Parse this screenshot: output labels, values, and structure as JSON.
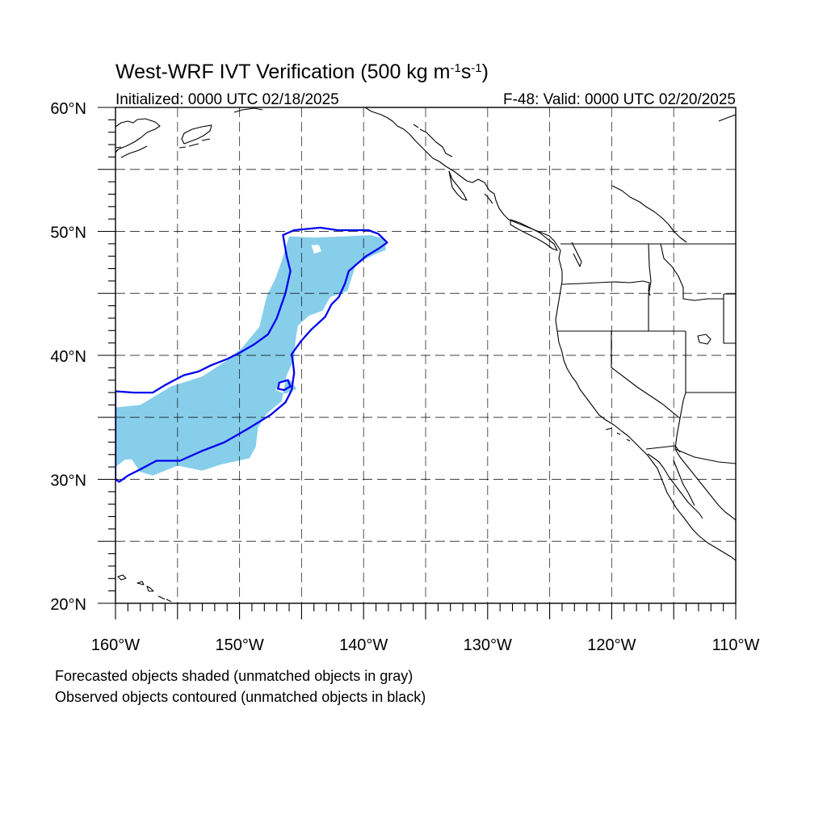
{
  "title": {
    "main": "West-WRF IVT Verification (500 kg m",
    "sup1": "-1",
    "mid": "s",
    "sup2": "-1",
    "end": ")"
  },
  "subtitle_left": "Initialized: 0000 UTC 02/18/2025",
  "subtitle_right": "F-48: Valid: 0000 UTC 02/20/2025",
  "notes": [
    "Forecasted objects shaded (unmatched objects in gray)",
    "Observed objects contoured (unmatched objects in black)"
  ],
  "map": {
    "lon_range": [
      -160,
      -110
    ],
    "lat_range": [
      20,
      60
    ],
    "lon_ticks": [
      {
        "value": -160,
        "label": "160°W"
      },
      {
        "value": -150,
        "label": "150°W"
      },
      {
        "value": -140,
        "label": "140°W"
      },
      {
        "value": -130,
        "label": "130°W"
      },
      {
        "value": -120,
        "label": "120°W"
      },
      {
        "value": -110,
        "label": "110°W"
      }
    ],
    "lat_ticks": [
      {
        "value": 60,
        "label": "60°N"
      },
      {
        "value": 50,
        "label": "50°N"
      },
      {
        "value": 40,
        "label": "40°N"
      },
      {
        "value": 30,
        "label": "30°N"
      },
      {
        "value": 20,
        "label": "20°N"
      }
    ],
    "gridline_interval_deg": 5,
    "grid": true,
    "colors": {
      "forecast_fill": "#87ceeb",
      "observed_contour": "#0000ee",
      "coastline": "#000000",
      "gridline": "#000000"
    },
    "forecast_object": {
      "label": "Forecasted object (matched)",
      "outline": [
        [
          -160,
          35.8
        ],
        [
          -158,
          36
        ],
        [
          -155.5,
          37.5
        ],
        [
          -153,
          38.3
        ],
        [
          -151,
          39.6
        ],
        [
          -149.8,
          40.6
        ],
        [
          -148.4,
          42.3
        ],
        [
          -147.8,
          44.8
        ],
        [
          -147.1,
          46.2
        ],
        [
          -146.6,
          47.6
        ],
        [
          -146,
          49.6
        ],
        [
          -144,
          49.5
        ],
        [
          -141.5,
          49.6
        ],
        [
          -139.4,
          49.7
        ],
        [
          -138.3,
          49.4
        ],
        [
          -138.2,
          48.5
        ],
        [
          -139.2,
          48.1
        ],
        [
          -140.6,
          47.4
        ],
        [
          -141.3,
          45.2
        ],
        [
          -142.7,
          44.7
        ],
        [
          -143.3,
          43.6
        ],
        [
          -144.4,
          43.2
        ],
        [
          -145.3,
          42.4
        ],
        [
          -145.5,
          41.1
        ],
        [
          -145.6,
          39.7
        ],
        [
          -146.2,
          38.4
        ],
        [
          -146.6,
          36.3
        ],
        [
          -147.8,
          35.3
        ],
        [
          -148.5,
          34.2
        ],
        [
          -148.7,
          32.6
        ],
        [
          -149.2,
          31.7
        ],
        [
          -151.5,
          31.2
        ],
        [
          -153,
          30.7
        ],
        [
          -155,
          31.1
        ],
        [
          -157,
          30.3
        ],
        [
          -158,
          30.6
        ],
        [
          -158.7,
          31.6
        ],
        [
          -159.2,
          31.6
        ],
        [
          -160,
          31
        ]
      ],
      "holes": [
        [
          [
            -146.7,
            37.9
          ],
          [
            -145.9,
            38
          ],
          [
            -145.4,
            37.3
          ],
          [
            -146.3,
            36.9
          ],
          [
            -147.1,
            37.2
          ]
        ],
        [
          [
            -144.2,
            48.9
          ],
          [
            -143.6,
            48.9
          ],
          [
            -143.4,
            48.4
          ],
          [
            -144,
            48.2
          ]
        ]
      ]
    },
    "observed_object": {
      "label": "Observed object (matched)",
      "outline": [
        [
          -160,
          37.1
        ],
        [
          -158.5,
          37
        ],
        [
          -157,
          37
        ],
        [
          -156,
          37.6
        ],
        [
          -154.5,
          38.4
        ],
        [
          -153.3,
          38.7
        ],
        [
          -152.3,
          39.2
        ],
        [
          -151,
          39.7
        ],
        [
          -150,
          40.2
        ],
        [
          -148.8,
          40.9
        ],
        [
          -147.7,
          41.7
        ],
        [
          -147,
          43
        ],
        [
          -146.3,
          45
        ],
        [
          -145.9,
          46.8
        ],
        [
          -146.2,
          48
        ],
        [
          -146.5,
          49.7
        ],
        [
          -145.6,
          50.1
        ],
        [
          -144.5,
          50.2
        ],
        [
          -143.5,
          50.3
        ],
        [
          -142.1,
          50.1
        ],
        [
          -141,
          50.1
        ],
        [
          -139.6,
          50.1
        ],
        [
          -138.8,
          49.8
        ],
        [
          -138.1,
          49.1
        ],
        [
          -138.8,
          48.6
        ],
        [
          -139.8,
          48
        ],
        [
          -141.2,
          46.8
        ],
        [
          -141.5,
          45.8
        ],
        [
          -142,
          44.7
        ],
        [
          -142.6,
          44.1
        ],
        [
          -143.1,
          43.1
        ],
        [
          -144.2,
          42.1
        ],
        [
          -145,
          41.2
        ],
        [
          -145.8,
          40.1
        ],
        [
          -145.7,
          39.5
        ],
        [
          -145.6,
          38.6
        ],
        [
          -145.8,
          37.2
        ],
        [
          -146.3,
          36.2
        ],
        [
          -147.5,
          35.2
        ],
        [
          -149.3,
          34.1
        ],
        [
          -151.2,
          33
        ],
        [
          -153,
          32.3
        ],
        [
          -154.8,
          31.5
        ],
        [
          -156.7,
          31.5
        ],
        [
          -158,
          30.8
        ],
        [
          -159,
          30.3
        ],
        [
          -159.7,
          29.8
        ],
        [
          -160,
          30
        ]
      ],
      "inner_ring": [
        [
          -146.8,
          37.8
        ],
        [
          -146.1,
          38
        ],
        [
          -145.9,
          37.5
        ],
        [
          -146.4,
          37.2
        ],
        [
          -146.9,
          37.3
        ]
      ]
    }
  }
}
